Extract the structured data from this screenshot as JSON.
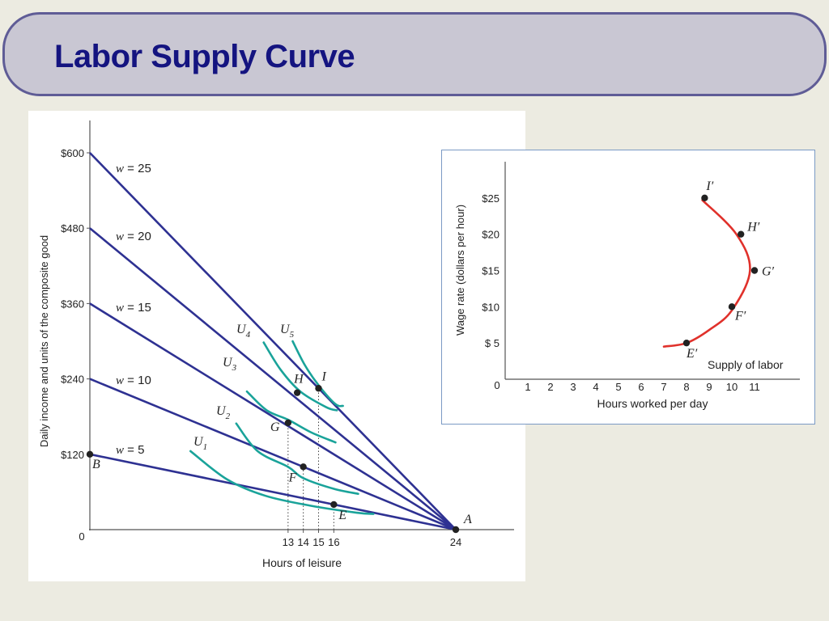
{
  "slide": {
    "title": "Labor Supply Curve"
  },
  "colors": {
    "budget": "#2e3192",
    "indifference": "#1aa39a",
    "supply": "#e0312b",
    "title": "#141480",
    "point": "#222222"
  },
  "chart_data": [
    {
      "type": "line",
      "xlabel": "Hours of leisure",
      "ylabel": "Daily income and units of the composite good",
      "x_ticks": [
        {
          "value": 0,
          "label": "0"
        },
        {
          "value": 13,
          "label": "13"
        },
        {
          "value": 14,
          "label": "14"
        },
        {
          "value": 15,
          "label": "15"
        },
        {
          "value": 16,
          "label": "16"
        },
        {
          "value": 24,
          "label": "24"
        }
      ],
      "y_ticks": [
        {
          "value": 0,
          "label": "0"
        },
        {
          "value": 120,
          "label": "$120"
        },
        {
          "value": 240,
          "label": "$240"
        },
        {
          "value": 360,
          "label": "$360"
        },
        {
          "value": 480,
          "label": "$480"
        },
        {
          "value": 600,
          "label": "$600"
        }
      ],
      "xlim": [
        0,
        24
      ],
      "ylim": [
        0,
        600
      ],
      "budget_lines": [
        {
          "label": "w = 25",
          "wage": 25
        },
        {
          "label": "w = 20",
          "wage": 20
        },
        {
          "label": "w = 15",
          "wage": 15
        },
        {
          "label": "w = 10",
          "wage": 10
        },
        {
          "label": "w = 5",
          "wage": 5
        }
      ],
      "indifference_curves": [
        {
          "name": "U",
          "sub": "1",
          "points": [
            [
              6.6,
              125
            ],
            [
              9.0,
              80
            ],
            [
              11.5,
              54
            ],
            [
              14.5,
              38
            ],
            [
              17.5,
              27
            ],
            [
              18.6,
              25
            ]
          ]
        },
        {
          "name": "U",
          "sub": "2",
          "points": [
            [
              9.6,
              169
            ],
            [
              11.0,
              125
            ],
            [
              13.0,
              100
            ],
            [
              14.0,
              82
            ],
            [
              16.0,
              65
            ],
            [
              17.6,
              57
            ]
          ]
        },
        {
          "name": "U",
          "sub": "3",
          "points": [
            [
              10.3,
              220
            ],
            [
              11.6,
              190
            ],
            [
              13.0,
              175
            ],
            [
              14.5,
              155
            ],
            [
              16.0,
              140
            ],
            [
              16.0,
              140
            ]
          ]
        },
        {
          "name": "U",
          "sub": "4",
          "points": [
            [
              11.4,
              298
            ],
            [
              12.5,
              255
            ],
            [
              13.8,
              220
            ],
            [
              15.5,
              195
            ],
            [
              16.2,
              190
            ]
          ]
        },
        {
          "name": "U",
          "sub": "5",
          "points": [
            [
              13.3,
              300
            ],
            [
              14.1,
              262
            ],
            [
              15.0,
              230
            ],
            [
              16.1,
              200
            ],
            [
              16.6,
              197
            ]
          ]
        }
      ],
      "points": [
        {
          "label": "A",
          "x": 24,
          "y": 0
        },
        {
          "label": "B",
          "x": 0,
          "y": 120
        },
        {
          "label": "E",
          "x": 16,
          "y": 40
        },
        {
          "label": "F",
          "x": 14,
          "y": 100
        },
        {
          "label": "G",
          "x": 13,
          "y": 170
        },
        {
          "label": "H",
          "x": 13.6,
          "y": 218
        },
        {
          "label": "I",
          "x": 15,
          "y": 225
        }
      ],
      "dotted_guides": [
        13,
        14,
        15,
        16
      ]
    },
    {
      "type": "line",
      "xlabel": "Hours worked per day",
      "ylabel": "Wage rate (dollars per hour)",
      "x_ticks": [
        {
          "value": 0,
          "label": "0"
        },
        {
          "value": 1,
          "label": "1"
        },
        {
          "value": 2,
          "label": "2"
        },
        {
          "value": 3,
          "label": "3"
        },
        {
          "value": 4,
          "label": "4"
        },
        {
          "value": 5,
          "label": "5"
        },
        {
          "value": 6,
          "label": "6"
        },
        {
          "value": 7,
          "label": "7"
        },
        {
          "value": 8,
          "label": "8"
        },
        {
          "value": 9,
          "label": "9"
        },
        {
          "value": 10,
          "label": "10"
        },
        {
          "value": 11,
          "label": "11"
        }
      ],
      "y_ticks": [
        {
          "value": 5,
          "label": "$ 5"
        },
        {
          "value": 10,
          "label": "$10"
        },
        {
          "value": 15,
          "label": "$15"
        },
        {
          "value": 20,
          "label": "$20"
        },
        {
          "value": 25,
          "label": "$25"
        }
      ],
      "xlim": [
        0,
        13
      ],
      "ylim": [
        0,
        30
      ],
      "series": [
        {
          "name": "Supply of labor",
          "points": [
            [
              7.0,
              4.5
            ],
            [
              8.0,
              5.0
            ],
            [
              9.0,
              6.8
            ],
            [
              10.0,
              9.5
            ],
            [
              10.8,
              15.0
            ],
            [
              10.2,
              20.0
            ],
            [
              8.7,
              24.7
            ]
          ]
        }
      ],
      "points": [
        {
          "label": "E′",
          "x": 8,
          "y": 5
        },
        {
          "label": "F′",
          "x": 10,
          "y": 10
        },
        {
          "label": "G′",
          "x": 11,
          "y": 15
        },
        {
          "label": "H′",
          "x": 10.4,
          "y": 20
        },
        {
          "label": "I′",
          "x": 8.8,
          "y": 25
        }
      ]
    }
  ]
}
